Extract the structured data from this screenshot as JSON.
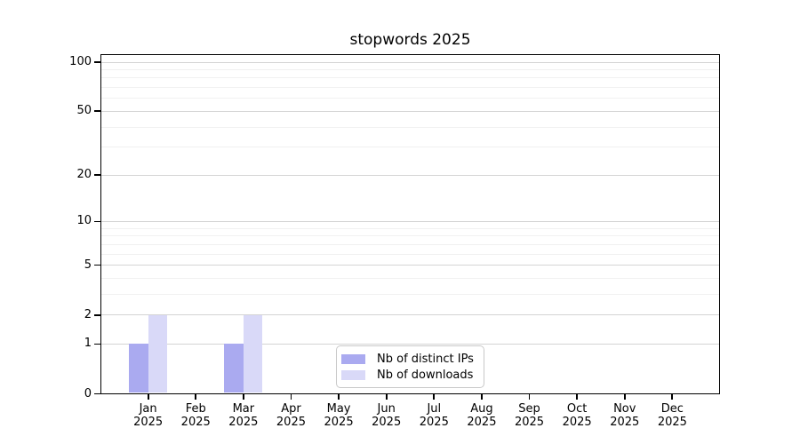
{
  "chart_data": {
    "type": "bar",
    "title": "stopwords 2025",
    "categories": [
      "Jan 2025",
      "Feb 2025",
      "Mar 2025",
      "Apr 2025",
      "May 2025",
      "Jun 2025",
      "Jul 2025",
      "Aug 2025",
      "Sep 2025",
      "Oct 2025",
      "Nov 2025",
      "Dec 2025"
    ],
    "series": [
      {
        "name": "Nb of distinct IPs",
        "color": "#aaaaf0",
        "values": [
          1,
          0,
          1,
          0,
          0,
          0,
          0,
          0,
          0,
          0,
          0,
          0
        ]
      },
      {
        "name": "Nb of downloads",
        "color": "#d9d9f8",
        "values": [
          2,
          0,
          2,
          0,
          0,
          0,
          0,
          0,
          0,
          0,
          0,
          0
        ]
      }
    ],
    "y_axis": {
      "scale": "log1p",
      "ticks": [
        0,
        1,
        2,
        5,
        10,
        20,
        50,
        100
      ],
      "minor_gridlines": [
        3,
        4,
        6,
        7,
        8,
        9,
        30,
        40,
        60,
        70,
        80,
        90
      ],
      "range": [
        0,
        112
      ]
    },
    "x_axis": {
      "label": ""
    },
    "legend": {
      "position": "inside-bottom-center"
    },
    "grid": true,
    "colors": {
      "major_grid": "#d4d4d4",
      "minor_grid": "#f1f1f1",
      "axis": "#000000",
      "text": "#000000",
      "background": "#ffffff"
    }
  }
}
